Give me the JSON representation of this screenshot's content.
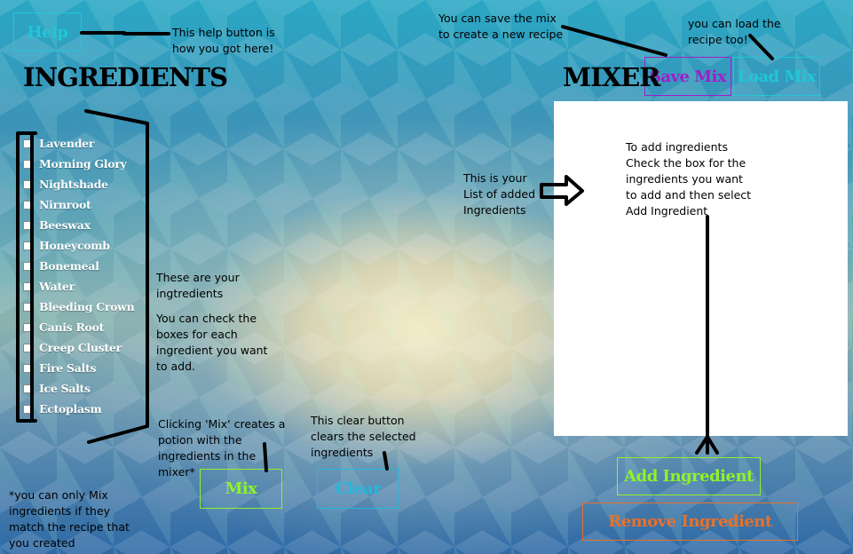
{
  "colors": {
    "help": "#21c7d6",
    "save_mix": "#a21cc9",
    "load_mix": "#1fc7d8",
    "mix": "#8ff22a",
    "clear": "#22b8df",
    "add_ingredient": "#8ff22a",
    "remove_ingredient": "#e8712a"
  },
  "toolbar": {
    "help_label": "Help",
    "save_mix_label": "Save Mix",
    "load_mix_label": "Load Mix"
  },
  "ingredients": {
    "title": "INGREDIENTS",
    "items": [
      {
        "label": "Lavender",
        "checked": false
      },
      {
        "label": "Morning Glory",
        "checked": false
      },
      {
        "label": "Nightshade",
        "checked": false
      },
      {
        "label": "Nirnroot",
        "checked": false
      },
      {
        "label": "Beeswax",
        "checked": false
      },
      {
        "label": "Honeycomb",
        "checked": false
      },
      {
        "label": "Bonemeal",
        "checked": false
      },
      {
        "label": "Water",
        "checked": false
      },
      {
        "label": "Bleeding Crown",
        "checked": false
      },
      {
        "label": "Canis Root",
        "checked": false
      },
      {
        "label": "Creep Cluster",
        "checked": false
      },
      {
        "label": "Fire Salts",
        "checked": false
      },
      {
        "label": "Ice Salts",
        "checked": false
      },
      {
        "label": "Ectoplasm",
        "checked": false
      }
    ]
  },
  "mixer": {
    "title": "MIXER",
    "add_ingredient_label": "Add Ingredient",
    "remove_ingredient_label": "Remove Ingredient",
    "mix_label": "Mix",
    "clear_label": "Clear"
  },
  "notes": {
    "help": [
      "This help button is",
      "how you got here!"
    ],
    "save": [
      "You can save the mix",
      "to create a new recipe"
    ],
    "load": [
      "you can load the",
      "recipe too!"
    ],
    "ingredients": [
      "These are your",
      "ingtredients",
      "",
      "You can check the",
      "boxes for each",
      "ingredient you want",
      "to add."
    ],
    "list": [
      "This is your",
      "List of added",
      "Ingredients"
    ],
    "mixer_panel": [
      "To add ingredients",
      "Check the box for the",
      "ingredients you want",
      "to add and then select",
      "Add Ingredient"
    ],
    "mix": [
      "Clicking 'Mix' creates a",
      "potion with the",
      "ingredients in the",
      "mixer*"
    ],
    "clear": [
      "This clear button",
      "clears the selected",
      "ingredients"
    ],
    "footnote": [
      "*you can only Mix",
      "ingredients if they",
      "match the recipe that",
      "you created"
    ]
  }
}
